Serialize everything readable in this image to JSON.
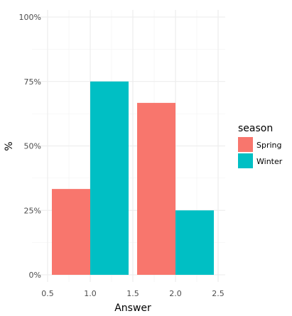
{
  "chart_data": {
    "type": "bar",
    "title": "",
    "xlabel": "Answer",
    "ylabel": "%",
    "xlim": [
      0.5,
      2.5
    ],
    "ylim": [
      0,
      1
    ],
    "x_ticks": [
      "0.5",
      "1.0",
      "1.5",
      "2.0",
      "2.5"
    ],
    "y_ticks": [
      "0%",
      "25%",
      "50%",
      "75%",
      "100%"
    ],
    "grid": true,
    "legend": {
      "title": "season",
      "position": "right"
    },
    "bar_width": 0.9,
    "series": [
      {
        "name": "Spring",
        "color": "#F8766D",
        "x": [
          1,
          2
        ],
        "values": [
          0.333,
          0.667
        ]
      },
      {
        "name": "Winter",
        "color": "#00BFC4",
        "x": [
          1,
          2
        ],
        "values": [
          0.75,
          0.25
        ]
      }
    ]
  }
}
